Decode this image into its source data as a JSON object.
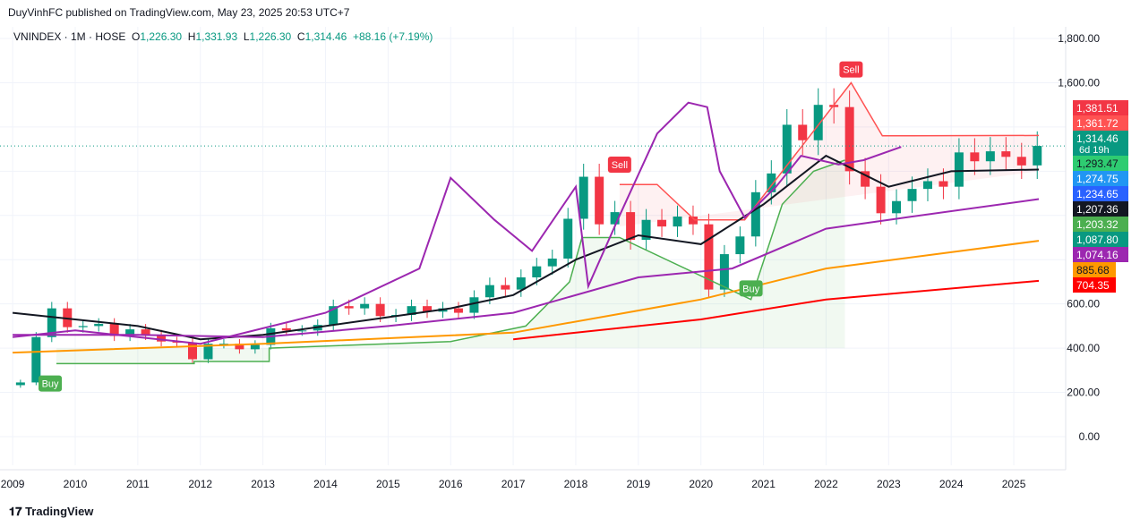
{
  "header": {
    "published": "DuyVinhFC published on TradingView.com, May 23, 2025 20:53 UTC+7"
  },
  "legend": {
    "symbol": "VNINDEX · 1M · HOSE",
    "o_label": "O",
    "o": "1,226.30",
    "h_label": "H",
    "h": "1,331.93",
    "l_label": "L",
    "l": "1,226.30",
    "c_label": "C",
    "c": "1,314.46",
    "change": "+88.16 (+7.19%)"
  },
  "footer": {
    "brand": "TradingView"
  },
  "chart_data": {
    "type": "candlestick",
    "title": "VNINDEX · 1M · HOSE",
    "x_ticks": [
      "2009",
      "2010",
      "2011",
      "2012",
      "2013",
      "2014",
      "2015",
      "2016",
      "2017",
      "2018",
      "2019",
      "2020",
      "2021",
      "2022",
      "2023",
      "2024",
      "2025"
    ],
    "y_ticks": [
      "0.00",
      "200.00",
      "400.00",
      "600.00",
      "1,600.00",
      "1,800.00"
    ],
    "ylim": [
      0,
      1800
    ],
    "grid": true,
    "colors": {
      "up": "#089981",
      "down": "#f23645",
      "ma1": "#131722",
      "ma2": "#9c27b0",
      "ma3": "#ff9800",
      "ma4": "#ff0000",
      "osc": "#9c27b0",
      "stop_buy": "#4caf50",
      "stop_sell": "#ff5252"
    },
    "closes_quarterly": {
      "start": "2009-Q1",
      "values": [
        245,
        450,
        580,
        495,
        500,
        510,
        455,
        485,
        460,
        430,
        425,
        350,
        420,
        420,
        395,
        415,
        490,
        480,
        480,
        505,
        590,
        580,
        600,
        545,
        550,
        590,
        565,
        580,
        560,
        630,
        685,
        665,
        720,
        770,
        805,
        985,
        1175,
        960,
        1015,
        890,
        980,
        950,
        995,
        960,
        665,
        825,
        905,
        1105,
        1190,
        1410,
        1340,
        1500,
        1490,
        1200,
        1130,
        1010,
        1065,
        1120,
        1155,
        1130,
        1285,
        1245,
        1290,
        1265,
        1226.3,
        1314.46
      ]
    },
    "moving_averages": [
      {
        "color": "#131722",
        "points": [
          [
            2009,
            560
          ],
          [
            2010,
            530
          ],
          [
            2011,
            500
          ],
          [
            2012,
            440
          ],
          [
            2013,
            460
          ],
          [
            2014,
            500
          ],
          [
            2015,
            540
          ],
          [
            2016,
            580
          ],
          [
            2017,
            640
          ],
          [
            2018,
            800
          ],
          [
            2019,
            910
          ],
          [
            2020,
            870
          ],
          [
            2021,
            1050
          ],
          [
            2022,
            1270
          ],
          [
            2023,
            1130
          ],
          [
            2024,
            1200
          ],
          [
            2025.4,
            1207.36
          ]
        ]
      },
      {
        "color": "#9c27b0",
        "points": [
          [
            2009,
            460
          ],
          [
            2011,
            460
          ],
          [
            2013,
            450
          ],
          [
            2015,
            500
          ],
          [
            2017,
            560
          ],
          [
            2019,
            720
          ],
          [
            2020.5,
            760
          ],
          [
            2022,
            940
          ],
          [
            2023,
            980
          ],
          [
            2025.4,
            1074.16
          ]
        ]
      },
      {
        "color": "#ff9800",
        "points": [
          [
            2009,
            380
          ],
          [
            2013,
            420
          ],
          [
            2017,
            470
          ],
          [
            2020,
            620
          ],
          [
            2022,
            760
          ],
          [
            2025.4,
            885.68
          ]
        ]
      },
      {
        "color": "#ff0000",
        "points": [
          [
            2017,
            440
          ],
          [
            2020,
            530
          ],
          [
            2022,
            620
          ],
          [
            2025.4,
            704.35
          ]
        ]
      }
    ],
    "oscillator": {
      "color": "#9c27b0",
      "points": [
        [
          2009,
          450
        ],
        [
          2010,
          480
        ],
        [
          2011,
          450
        ],
        [
          2012,
          420
        ],
        [
          2014,
          560
        ],
        [
          2015.5,
          760
        ],
        [
          2016,
          1170
        ],
        [
          2016.7,
          980
        ],
        [
          2017.3,
          840
        ],
        [
          2018,
          1130
        ],
        [
          2018.2,
          680
        ],
        [
          2018.7,
          1000
        ],
        [
          2019.3,
          1370
        ],
        [
          2019.8,
          1510
        ],
        [
          2020.1,
          1490
        ],
        [
          2020.3,
          1200
        ],
        [
          2020.7,
          990
        ],
        [
          2021.2,
          1130
        ],
        [
          2021.6,
          1270
        ],
        [
          2022.2,
          1230
        ],
        [
          2022.6,
          1250
        ],
        [
          2023.2,
          1310
        ]
      ]
    },
    "trailing_stop_buy": [
      [
        2009.7,
        330
      ],
      [
        2011.9,
        330
      ],
      [
        2011.9,
        340
      ],
      [
        2013.1,
        340
      ],
      [
        2013.1,
        400
      ],
      [
        2016,
        430
      ],
      [
        2017.2,
        500
      ],
      [
        2017.9,
        700
      ],
      [
        2018.1,
        900
      ],
      [
        2018.7,
        900
      ],
      [
        2020.8,
        620
      ],
      [
        2021.3,
        1050
      ],
      [
        2021.8,
        1200
      ],
      [
        2022.3,
        1250
      ]
    ],
    "trailing_stop_sell": [
      [
        2018.7,
        1140
      ],
      [
        2019.3,
        1140
      ],
      [
        2019.9,
        980
      ],
      [
        2020.7,
        980
      ],
      [
        2022.4,
        1600
      ],
      [
        2022.9,
        1360
      ],
      [
        2025.4,
        1361.72
      ]
    ],
    "signals": [
      {
        "label": "Buy",
        "x": 2009.6,
        "y": 240
      },
      {
        "label": "Sell",
        "x": 2018.7,
        "y": 1230
      },
      {
        "label": "Buy",
        "x": 2020.8,
        "y": 670
      },
      {
        "label": "Sell",
        "x": 2022.4,
        "y": 1660
      }
    ],
    "price_labels": [
      {
        "text": "1,381.51",
        "bg": "#f23645",
        "fg": "#fff"
      },
      {
        "text": "1,361.72",
        "bg": "#ff5252",
        "fg": "#fff"
      },
      {
        "text": "1,314.46",
        "sub": "6d 19h",
        "bg": "#089981",
        "fg": "#fff"
      },
      {
        "text": "1,293.47",
        "bg": "#2ecc71",
        "fg": "#131722"
      },
      {
        "text": "1,274.75",
        "bg": "#2196f3",
        "fg": "#fff"
      },
      {
        "text": "1,234.65",
        "bg": "#2962ff",
        "fg": "#fff"
      },
      {
        "text": "1,207.36",
        "bg": "#131722",
        "fg": "#fff"
      },
      {
        "text": "1,203.32",
        "bg": "#4caf50",
        "fg": "#fff"
      },
      {
        "text": "1,087.80",
        "bg": "#089981",
        "fg": "#fff"
      },
      {
        "text": "1,074.16",
        "bg": "#9c27b0",
        "fg": "#fff"
      },
      {
        "text": "885.68",
        "bg": "#ff9800",
        "fg": "#131722"
      },
      {
        "text": "704.35",
        "bg": "#ff0000",
        "fg": "#fff"
      }
    ]
  }
}
